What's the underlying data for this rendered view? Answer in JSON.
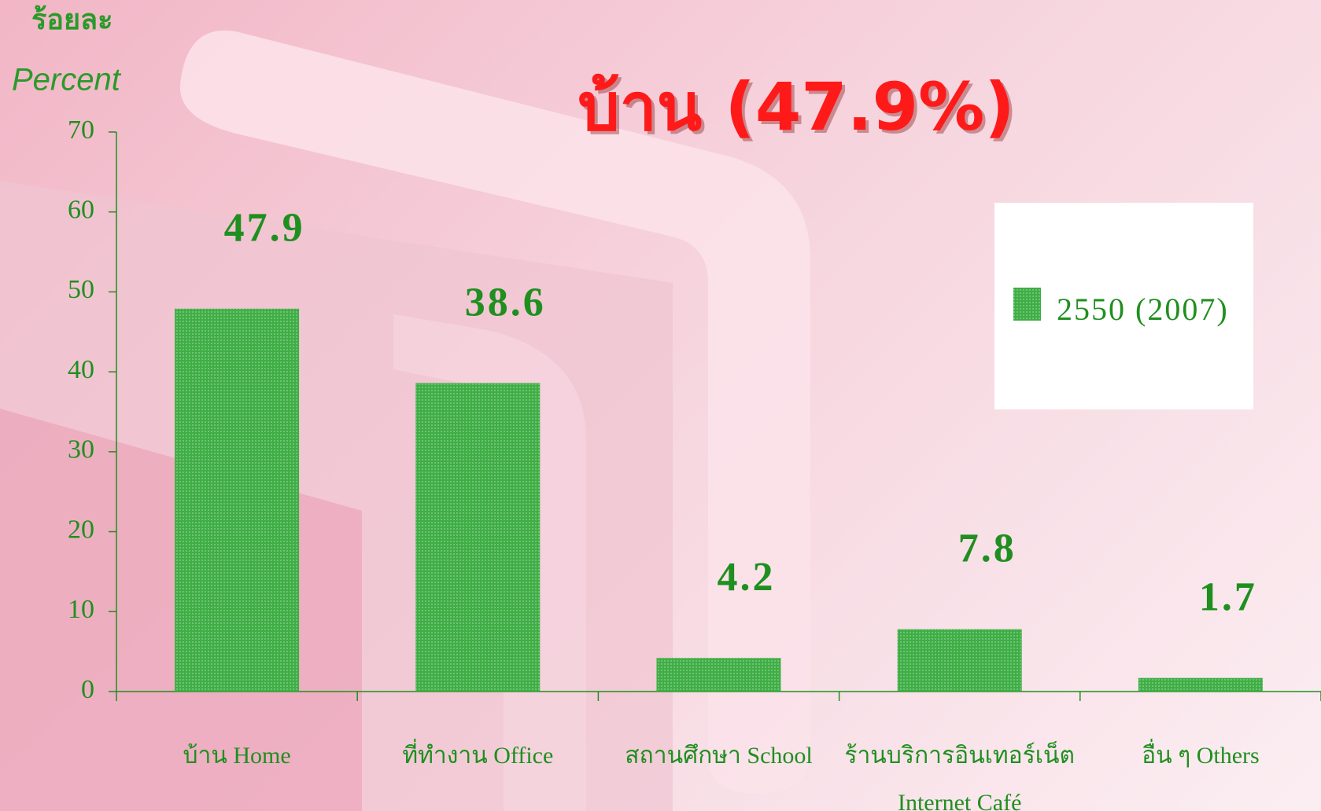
{
  "chart_data": {
    "type": "bar",
    "title": "บ้าน (47.9%)",
    "y_label_thai": "ร้อยละ",
    "y_label": "Percent",
    "categories": [
      "บ้าน    Home",
      "ที่ทำงาน   Office",
      "สถานศึกษา  School",
      "ร้านบริการอินเทอร์เน็ต Internet Café",
      "อื่น ๆ    Others"
    ],
    "series": [
      {
        "name": "2550 (2007)",
        "color": "#3fae45",
        "values": [
          47.9,
          38.6,
          4.2,
          7.8,
          1.7
        ]
      }
    ],
    "ylim": [
      0,
      70
    ],
    "yticks": [
      0,
      10,
      20,
      30,
      40,
      50,
      60,
      70
    ]
  }
}
